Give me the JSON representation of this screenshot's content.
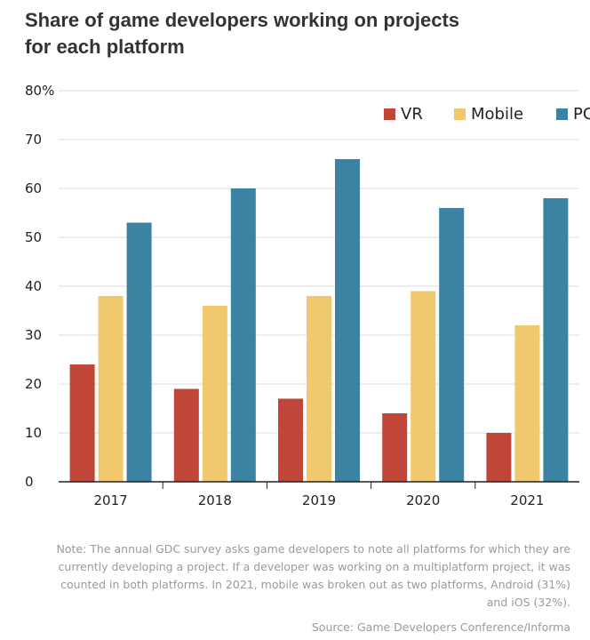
{
  "title_lines": [
    "Share of game developers working on projects",
    "for each platform"
  ],
  "note_lines": [
    "Note: The annual GDC survey asks game developers to note all platforms for which they are",
    "currently developing a project. If a developer was working on a multiplatform project, it was",
    "counted in both platforms. In 2021, mobile was broken out as two platforms, Android (31%)",
    "and iOS (32%)."
  ],
  "source": "Source: Game Developers Conference/Informa",
  "chart_data": {
    "type": "bar",
    "title": "Share of game developers working on projects for each platform",
    "categories": [
      "2017",
      "2018",
      "2019",
      "2020",
      "2021"
    ],
    "series": [
      {
        "name": "VR",
        "color": "#c0463a",
        "values": [
          24,
          19,
          17,
          14,
          10
        ]
      },
      {
        "name": "Mobile",
        "color": "#f0c96e",
        "values": [
          38,
          36,
          38,
          39,
          32
        ]
      },
      {
        "name": "PC",
        "color": "#3b82a3",
        "values": [
          53,
          60,
          66,
          56,
          58
        ]
      }
    ],
    "ylim": [
      0,
      80
    ],
    "yticks": [
      0,
      10,
      20,
      30,
      40,
      50,
      60,
      70,
      80
    ],
    "ytick_labels": [
      "0",
      "10",
      "20",
      "30",
      "40",
      "50",
      "60",
      "70",
      "80%"
    ],
    "grid": true,
    "legend_position": "top-right"
  }
}
